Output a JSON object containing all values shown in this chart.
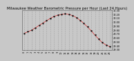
{
  "title": "Milwaukee Weather Barometric Pressure per Hour (Last 24 Hours)",
  "hours": [
    0,
    1,
    2,
    3,
    4,
    5,
    6,
    7,
    8,
    9,
    10,
    11,
    12,
    13,
    14,
    15,
    16,
    17,
    18,
    19,
    20,
    21,
    22,
    23
  ],
  "pressure": [
    29.72,
    29.76,
    29.8,
    29.86,
    29.92,
    29.98,
    30.04,
    30.1,
    30.15,
    30.18,
    30.2,
    30.21,
    30.2,
    30.17,
    30.12,
    30.05,
    29.97,
    29.88,
    29.78,
    29.67,
    29.57,
    29.48,
    29.42,
    29.38
  ],
  "line_color": "#dd0000",
  "marker_color": "#111111",
  "bg_color": "#c8c8c8",
  "plot_bg_color": "#c8c8c8",
  "grid_color": "#888888",
  "ylim_min": 29.3,
  "ylim_max": 30.3,
  "title_fontsize": 3.8,
  "tick_fontsize": 2.5,
  "ytick_step": 0.1
}
